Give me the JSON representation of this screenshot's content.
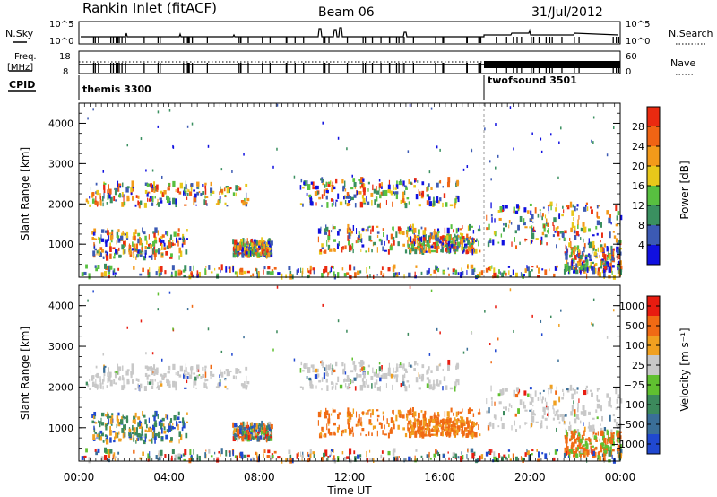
{
  "header": {
    "station": "Rankin Inlet (fitACF)",
    "beam": "Beam 06",
    "date": "31/Jul/2012"
  },
  "summary_panels": {
    "nsky_label": "N.Sky",
    "nsky_ticks": [
      "10^5",
      "10^0"
    ],
    "nsearch_label": "N.Search",
    "nsearch_ticks": [
      "10^5",
      "10^0"
    ],
    "freq_label_line1": "Freq.",
    "freq_label_line2": "[MHz]",
    "freq_ticks": [
      "18",
      "8"
    ],
    "nave_label": "Nave",
    "nave_ticks": [
      "60",
      "0"
    ],
    "cpid_label": "CPID",
    "cpid_segments": [
      {
        "name": "themis 3300",
        "start_hour": 0,
        "end_hour": 18
      },
      {
        "name": "twofsound 3501",
        "start_hour": 18,
        "end_hour": 24
      }
    ]
  },
  "chart_data": [
    {
      "type": "heatmap",
      "parameter": "Power",
      "ylabel": "Slant Range [km]",
      "ylim": [
        180,
        4500
      ],
      "yticks": [
        "1000",
        "2000",
        "3000",
        "4000"
      ],
      "colorbar_label": "Power [dB]",
      "colorbar_ticks": [
        "4",
        "8",
        "12",
        "16",
        "20",
        "24",
        "28"
      ],
      "colorbar_colors": [
        "#1010e0",
        "#3c5ab4",
        "#3a9060",
        "#58c040",
        "#e8c81a",
        "#f39a1a",
        "#f06414",
        "#ea2a10"
      ]
    },
    {
      "type": "heatmap",
      "parameter": "Velocity",
      "xlabel": "Time UT",
      "ylabel": "Slant Range [km]",
      "ylim": [
        180,
        4500
      ],
      "yticks": [
        "1000",
        "2000",
        "3000",
        "4000"
      ],
      "xticks": [
        "00:00",
        "04:00",
        "08:00",
        "12:00",
        "16:00",
        "20:00",
        "00:00"
      ],
      "colorbar_label": "Velocity [m s⁻¹]",
      "colorbar_ticks": [
        "1000",
        "500",
        "100",
        "25",
        "−25",
        "−100",
        "−500",
        "−1000"
      ],
      "colorbar_colors": [
        "#2048d0",
        "#3a6e98",
        "#3c8a5c",
        "#60c030",
        "#c8c8c8",
        "#f0a020",
        "#f06a14",
        "#e81c10"
      ]
    }
  ]
}
